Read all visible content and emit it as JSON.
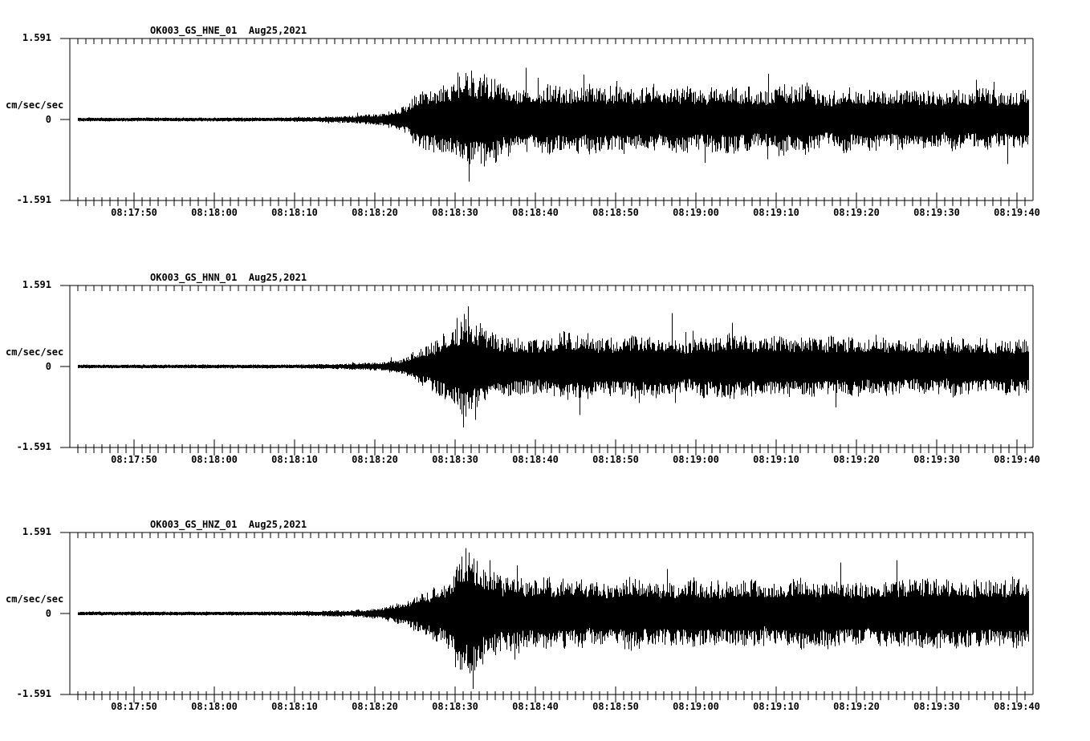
{
  "colors": {
    "background": "#ffffff",
    "trace": "#000000",
    "text": "#000000"
  },
  "y_axis": {
    "top": "1.591",
    "zero": "0",
    "bottom": "-1.591",
    "unit": "cm/sec/sec"
  },
  "x_axis": {
    "labels": [
      "08:17:50",
      "08:18:00",
      "08:18:10",
      "08:18:20",
      "08:18:30",
      "08:18:40",
      "08:18:50",
      "08:19:00",
      "08:19:10",
      "08:19:20",
      "08:19:30",
      "08:19:40"
    ]
  },
  "panels": [
    {
      "id": "hne",
      "title": "OK003_GS_HNE_01  Aug25,2021"
    },
    {
      "id": "hnn",
      "title": "OK003_GS_HNN_01  Aug25,2021"
    },
    {
      "id": "hnz",
      "title": "OK003_GS_HNZ_01  Aug25,2021"
    }
  ],
  "chart_data": [
    {
      "type": "line",
      "title": "OK003_GS_HNE_01  Aug25,2021",
      "station": "OK003",
      "network": "GS",
      "channel": "HNE",
      "location": "01",
      "date": "Aug25,2021",
      "ylabel": "cm/sec/sec",
      "ylim": [
        -1.591,
        1.591
      ],
      "y_tick_values": [
        1.591,
        0,
        -1.591
      ],
      "x_tick_labels": [
        "08:17:50",
        "08:18:00",
        "08:18:10",
        "08:18:20",
        "08:18:30",
        "08:18:40",
        "08:18:50",
        "08:19:00",
        "08:19:10",
        "08:19:20",
        "08:19:30",
        "08:19:40"
      ],
      "x_window_seconds": 120,
      "first_tick_offset_s": 8,
      "tick_interval_s": 10,
      "grid": false,
      "legend": "none",
      "envelope_t_amp": [
        [
          0,
          0.03
        ],
        [
          15,
          0.03
        ],
        [
          22,
          0.035
        ],
        [
          27,
          0.045
        ],
        [
          31,
          0.055
        ],
        [
          34,
          0.07
        ],
        [
          37,
          0.095
        ],
        [
          39,
          0.125
        ],
        [
          41,
          0.2
        ],
        [
          42,
          0.3
        ],
        [
          43,
          0.5
        ],
        [
          44,
          0.6
        ],
        [
          45,
          0.63
        ],
        [
          46,
          0.7
        ],
        [
          47,
          0.76
        ],
        [
          48,
          0.85
        ],
        [
          49,
          0.9
        ],
        [
          50,
          0.95
        ],
        [
          51,
          0.9
        ],
        [
          52,
          0.86
        ],
        [
          53,
          0.8
        ],
        [
          54,
          0.75
        ],
        [
          56,
          0.68
        ],
        [
          58,
          0.62
        ],
        [
          60,
          0.68
        ],
        [
          63,
          0.6
        ],
        [
          66,
          0.64
        ],
        [
          70,
          0.6
        ],
        [
          74,
          0.66
        ],
        [
          78,
          0.6
        ],
        [
          82,
          0.64
        ],
        [
          86,
          0.6
        ],
        [
          90,
          0.66
        ],
        [
          94,
          0.6
        ],
        [
          98,
          0.62
        ],
        [
          102,
          0.58
        ],
        [
          106,
          0.62
        ],
        [
          110,
          0.58
        ],
        [
          114,
          0.6
        ],
        [
          118,
          0.58
        ],
        [
          120,
          0.58
        ]
      ],
      "peak_spikes_t_amp": [
        [
          48.3,
          0.92
        ],
        [
          50.0,
          0.96
        ],
        [
          51.6,
          -0.92
        ],
        [
          53.0,
          -0.85
        ],
        [
          64.0,
          0.88
        ],
        [
          87.0,
          0.9
        ]
      ]
    },
    {
      "type": "line",
      "title": "OK003_GS_HNN_01  Aug25,2021",
      "station": "OK003",
      "network": "GS",
      "channel": "HNN",
      "location": "01",
      "date": "Aug25,2021",
      "ylabel": "cm/sec/sec",
      "ylim": [
        -1.591,
        1.591
      ],
      "y_tick_values": [
        1.591,
        0,
        -1.591
      ],
      "x_tick_labels": [
        "08:17:50",
        "08:18:00",
        "08:18:10",
        "08:18:20",
        "08:18:30",
        "08:18:40",
        "08:18:50",
        "08:19:00",
        "08:19:10",
        "08:19:20",
        "08:19:30",
        "08:19:40"
      ],
      "x_window_seconds": 120,
      "first_tick_offset_s": 8,
      "tick_interval_s": 10,
      "grid": false,
      "legend": "none",
      "envelope_t_amp": [
        [
          0,
          0.03
        ],
        [
          20,
          0.03
        ],
        [
          27,
          0.038
        ],
        [
          32,
          0.048
        ],
        [
          36,
          0.065
        ],
        [
          39,
          0.095
        ],
        [
          41,
          0.15
        ],
        [
          43,
          0.28
        ],
        [
          44,
          0.4
        ],
        [
          45,
          0.5
        ],
        [
          46,
          0.6
        ],
        [
          47,
          0.7
        ],
        [
          48,
          0.85
        ],
        [
          49,
          1.0
        ],
        [
          50,
          0.95
        ],
        [
          51,
          0.8
        ],
        [
          52,
          0.72
        ],
        [
          54,
          0.65
        ],
        [
          56,
          0.6
        ],
        [
          60,
          0.58
        ],
        [
          64,
          0.62
        ],
        [
          68,
          0.58
        ],
        [
          72,
          0.6
        ],
        [
          76,
          0.56
        ],
        [
          80,
          0.6
        ],
        [
          84,
          0.62
        ],
        [
          88,
          0.58
        ],
        [
          92,
          0.6
        ],
        [
          96,
          0.55
        ],
        [
          100,
          0.58
        ],
        [
          104,
          0.55
        ],
        [
          108,
          0.57
        ],
        [
          112,
          0.54
        ],
        [
          116,
          0.56
        ],
        [
          120,
          0.55
        ]
      ],
      "peak_spikes_t_amp": [
        [
          48.2,
          0.95
        ],
        [
          49.0,
          -1.2
        ],
        [
          49.6,
          1.18
        ],
        [
          50.5,
          -1.05
        ],
        [
          63.5,
          -0.95
        ],
        [
          75.0,
          1.05
        ]
      ]
    },
    {
      "type": "line",
      "title": "OK003_GS_HNZ_01  Aug25,2021",
      "station": "OK003",
      "network": "GS",
      "channel": "HNZ",
      "location": "01",
      "date": "Aug25,2021",
      "ylabel": "cm/sec/sec",
      "ylim": [
        -1.591,
        1.591
      ],
      "y_tick_values": [
        1.591,
        0,
        -1.591
      ],
      "x_tick_labels": [
        "08:17:50",
        "08:18:00",
        "08:18:10",
        "08:18:20",
        "08:18:30",
        "08:18:40",
        "08:18:50",
        "08:19:00",
        "08:19:10",
        "08:19:20",
        "08:19:30",
        "08:19:40"
      ],
      "x_window_seconds": 120,
      "first_tick_offset_s": 8,
      "tick_interval_s": 10,
      "grid": false,
      "legend": "none",
      "envelope_t_amp": [
        [
          0,
          0.035
        ],
        [
          20,
          0.035
        ],
        [
          27,
          0.042
        ],
        [
          32,
          0.055
        ],
        [
          36,
          0.075
        ],
        [
          39,
          0.115
        ],
        [
          41,
          0.2
        ],
        [
          43,
          0.35
        ],
        [
          45,
          0.5
        ],
        [
          46,
          0.6
        ],
        [
          47,
          0.7
        ],
        [
          48,
          0.85
        ],
        [
          49,
          1.05
        ],
        [
          50,
          1.15
        ],
        [
          51,
          1.0
        ],
        [
          52,
          0.92
        ],
        [
          53,
          0.86
        ],
        [
          54,
          0.8
        ],
        [
          56,
          0.72
        ],
        [
          58,
          0.68
        ],
        [
          62,
          0.65
        ],
        [
          66,
          0.6
        ],
        [
          70,
          0.65
        ],
        [
          74,
          0.6
        ],
        [
          78,
          0.62
        ],
        [
          82,
          0.58
        ],
        [
          86,
          0.62
        ],
        [
          90,
          0.6
        ],
        [
          94,
          0.65
        ],
        [
          98,
          0.6
        ],
        [
          102,
          0.62
        ],
        [
          106,
          0.68
        ],
        [
          110,
          0.63
        ],
        [
          114,
          0.66
        ],
        [
          118,
          0.6
        ],
        [
          120,
          0.6
        ]
      ],
      "peak_spikes_t_amp": [
        [
          48.6,
          -1.1
        ],
        [
          49.3,
          1.28
        ],
        [
          50.2,
          -1.48
        ],
        [
          51.4,
          -1.0
        ],
        [
          52.3,
          1.05
        ],
        [
          96.0,
          1.0
        ],
        [
          103.0,
          1.05
        ]
      ]
    }
  ]
}
